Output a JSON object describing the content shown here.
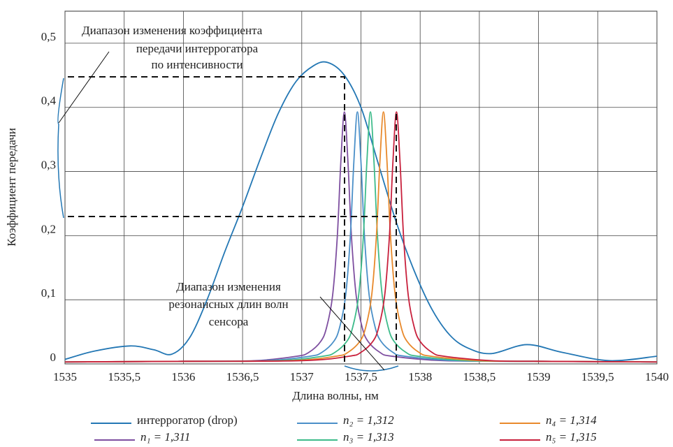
{
  "chart_data": {
    "type": "line",
    "xlabel": "Длина волны, нм",
    "ylabel": "Коэффициент передачи",
    "xlim": [
      1535,
      1540
    ],
    "ylim": [
      0,
      0.55
    ],
    "xticks": [
      1535,
      {
        "value": 1535.5,
        "label": "1535,5"
      },
      1536,
      {
        "value": 1536.5,
        "label": "1536,5"
      },
      1537,
      {
        "value": 1537.5,
        "label": "1537,5"
      },
      1538,
      {
        "value": 1538.5,
        "label": "1538,5"
      },
      1539,
      {
        "value": 1539.5,
        "label": "1539,5"
      },
      1540
    ],
    "yticks": [
      0,
      {
        "value": 0.1,
        "label": "0,1"
      },
      {
        "value": 0.2,
        "label": "0,2"
      },
      {
        "value": 0.3,
        "label": "0,3"
      },
      {
        "value": 0.4,
        "label": "0,4"
      },
      {
        "value": 0.5,
        "label": "0,5"
      }
    ],
    "grid": true,
    "legend": "bottom",
    "annotations": [
      {
        "lines": [
          "Диапазон изменения коэффициента",
          "передачи интеррогатора",
          "по интенсивности"
        ]
      },
      {
        "lines": [
          "Диапазон изменения",
          "резонансных длин волн",
          "сенсора"
        ]
      }
    ],
    "series": [
      {
        "name": "интеррогатор (drop)",
        "color": "#2377b4",
        "x": [
          1535,
          1535.25,
          1535.55,
          1535.75,
          1535.9,
          1536.05,
          1536.2,
          1536.35,
          1536.5,
          1536.65,
          1536.8,
          1536.95,
          1537.1,
          1537.22,
          1537.36,
          1537.5,
          1537.65,
          1537.8,
          1537.95,
          1538.1,
          1538.25,
          1538.4,
          1538.6,
          1538.9,
          1539.2,
          1539.6,
          1540
        ],
        "values": [
          0.007,
          0.02,
          0.028,
          0.022,
          0.015,
          0.04,
          0.1,
          0.175,
          0.245,
          0.32,
          0.39,
          0.44,
          0.465,
          0.47,
          0.45,
          0.4,
          0.31,
          0.22,
          0.145,
          0.085,
          0.045,
          0.025,
          0.016,
          0.03,
          0.018,
          0.005,
          0.012
        ]
      },
      {
        "name": "n₁ = 1,311",
        "color": "#7e4fa0",
        "x": [
          1535,
          1536,
          1536.6,
          1536.96,
          1537.06,
          1537.16,
          1537.21,
          1537.26,
          1537.3,
          1537.33,
          1537.36,
          1537.39,
          1537.42,
          1537.46,
          1537.51,
          1537.56,
          1537.66,
          1537.76,
          1538.2,
          1539,
          1540
        ],
        "values": [
          0.003,
          0.004,
          0.005,
          0.012,
          0.018,
          0.035,
          0.057,
          0.106,
          0.198,
          0.315,
          0.393,
          0.315,
          0.198,
          0.106,
          0.057,
          0.035,
          0.018,
          0.012,
          0.005,
          0.004,
          0.003
        ]
      },
      {
        "name": "n₂ = 1,312",
        "color": "#4a8fc8",
        "x": [
          1535,
          1536,
          1536.7,
          1537.07,
          1537.17,
          1537.27,
          1537.32,
          1537.37,
          1537.41,
          1537.44,
          1537.47,
          1537.5,
          1537.53,
          1537.57,
          1537.62,
          1537.67,
          1537.77,
          1537.87,
          1538.3,
          1539,
          1540
        ],
        "values": [
          0.003,
          0.004,
          0.005,
          0.012,
          0.018,
          0.035,
          0.057,
          0.106,
          0.198,
          0.315,
          0.393,
          0.315,
          0.198,
          0.106,
          0.057,
          0.035,
          0.018,
          0.012,
          0.005,
          0.004,
          0.003
        ]
      },
      {
        "name": "n₃ = 1,313",
        "color": "#3dbb8a",
        "x": [
          1535,
          1536,
          1536.8,
          1537.18,
          1537.28,
          1537.38,
          1537.43,
          1537.48,
          1537.52,
          1537.55,
          1537.58,
          1537.61,
          1537.64,
          1537.68,
          1537.73,
          1537.78,
          1537.88,
          1537.98,
          1538.4,
          1539,
          1540
        ],
        "values": [
          0.003,
          0.004,
          0.005,
          0.012,
          0.018,
          0.035,
          0.057,
          0.106,
          0.198,
          0.315,
          0.393,
          0.315,
          0.198,
          0.106,
          0.057,
          0.035,
          0.018,
          0.012,
          0.005,
          0.004,
          0.003
        ]
      },
      {
        "name": "n₄ = 1,314",
        "color": "#e8892b",
        "x": [
          1535,
          1536,
          1536.9,
          1537.29,
          1537.39,
          1537.49,
          1537.54,
          1537.59,
          1537.63,
          1537.66,
          1537.69,
          1537.72,
          1537.75,
          1537.79,
          1537.84,
          1537.89,
          1537.99,
          1538.09,
          1538.5,
          1539,
          1540
        ],
        "values": [
          0.003,
          0.004,
          0.005,
          0.012,
          0.018,
          0.035,
          0.057,
          0.106,
          0.198,
          0.315,
          0.393,
          0.315,
          0.198,
          0.106,
          0.057,
          0.035,
          0.018,
          0.012,
          0.005,
          0.004,
          0.003
        ]
      },
      {
        "name": "n₅ = 1,315",
        "color": "#c8203c",
        "x": [
          1535,
          1536,
          1537,
          1537.4,
          1537.5,
          1537.6,
          1537.65,
          1537.7,
          1537.74,
          1537.77,
          1537.8,
          1537.83,
          1537.86,
          1537.9,
          1537.95,
          1538,
          1538.1,
          1538.2,
          1538.6,
          1539,
          1540
        ],
        "values": [
          0.003,
          0.004,
          0.005,
          0.012,
          0.018,
          0.035,
          0.057,
          0.106,
          0.198,
          0.315,
          0.393,
          0.315,
          0.198,
          0.106,
          0.057,
          0.035,
          0.018,
          0.012,
          0.005,
          0.004,
          0.003
        ]
      }
    ]
  }
}
